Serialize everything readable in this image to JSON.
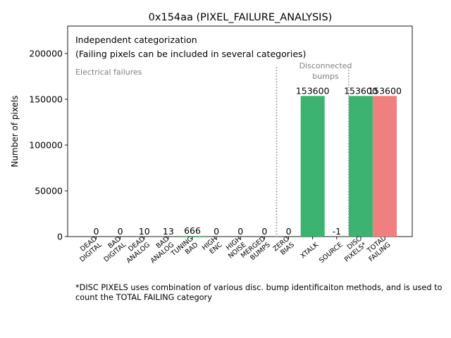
{
  "chart_data": {
    "type": "bar",
    "title": "0x154aa (PIXEL_FAILURE_ANALYSIS)",
    "ylabel": "Number of pixels",
    "xlabel": "",
    "ylim": [
      0,
      230000
    ],
    "yticks": [
      0,
      50000,
      100000,
      150000,
      200000
    ],
    "categories": [
      [
        "DEAD",
        "DIGITAL"
      ],
      [
        "BAD",
        "DIGITAL"
      ],
      [
        "DEAD",
        "ANALOG"
      ],
      [
        "BAD",
        "ANALOG"
      ],
      [
        "TUNING",
        "BAD"
      ],
      [
        "HIGH",
        "ENC"
      ],
      [
        "HIGH",
        "NOISE"
      ],
      [
        "MERGED",
        "BUMPS"
      ],
      [
        "ZERO",
        "BIAS"
      ],
      [
        "XTALK"
      ],
      [
        "SOURCE"
      ],
      [
        "DISC",
        "PIXELS*"
      ],
      [
        "TOTAL",
        "FAILING"
      ]
    ],
    "values": [
      0,
      0,
      10,
      13,
      666,
      0,
      0,
      0,
      0,
      153600,
      -1,
      153600,
      153600
    ],
    "value_labels": [
      "0",
      "0",
      "10",
      "13",
      "666",
      "0",
      "0",
      "0",
      "0",
      "153600",
      "-1",
      "153600",
      "153600"
    ],
    "bar_colors": [
      "#3cb371",
      "#3cb371",
      "#3cb371",
      "#3cb371",
      "#3cb371",
      "#3cb371",
      "#3cb371",
      "#3cb371",
      "#3cb371",
      "#3cb371",
      "#3cb371",
      "#3cb371",
      "#f08080"
    ],
    "annotations": {
      "box_line1": "Independent categorization",
      "box_line2": "(Failing pixels can be included in several categories)",
      "electrical": "Electrical failures",
      "disconnected_line1": "Disconnected",
      "disconnected_line2": "bumps"
    },
    "separator_after_indices": [
      7,
      10
    ],
    "separator_top_value": 185000
  },
  "footnote": "*DISC PIXELS uses combination of various disc. bump identificaiton methods, and is used to count the TOTAL FAILING category"
}
